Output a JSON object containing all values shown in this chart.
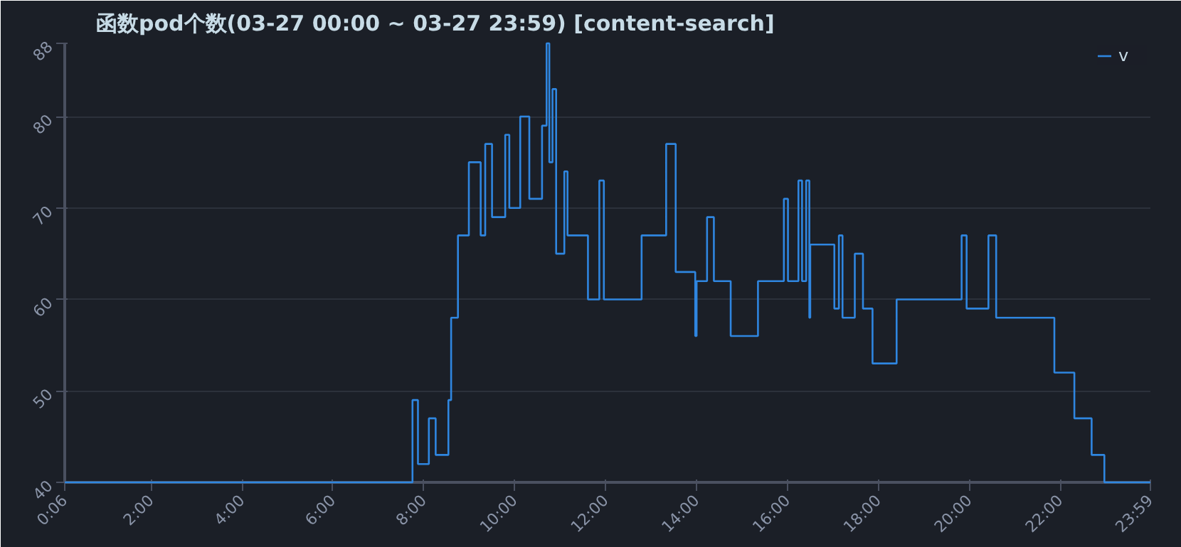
{
  "chart_data": {
    "type": "step",
    "title": "函数pod个数(03-27 00:00 ~ 03-27 23:59) [content-search]",
    "x": [
      0.1,
      7.75,
      7.87,
      8.11,
      8.26,
      8.54,
      8.6,
      8.75,
      8.99,
      9.25,
      9.35,
      9.5,
      9.79,
      9.88,
      10.12,
      10.32,
      10.6,
      10.7,
      10.76,
      10.83,
      10.91,
      11.09,
      11.16,
      11.61,
      11.86,
      11.96,
      12.79,
      13.33,
      13.54,
      13.97,
      14.0,
      14.23,
      14.38,
      14.75,
      15.35,
      15.92,
      16.01,
      16.24,
      16.32,
      16.41,
      16.48,
      16.5,
      17.03,
      17.13,
      17.21,
      17.48,
      17.66,
      17.87,
      18.4,
      19.83,
      19.94,
      20.42,
      20.59,
      21.87,
      22.31,
      22.69,
      22.97,
      23.983
    ],
    "series": [
      {
        "name": "v",
        "color": "#2f86e0",
        "values": [
          40,
          49,
          42,
          47,
          43,
          49,
          58,
          67,
          75,
          67,
          77,
          69,
          78,
          70,
          80,
          71,
          79,
          88,
          75,
          83,
          65,
          74,
          67,
          60,
          73,
          60,
          67,
          77,
          63,
          56,
          62,
          69,
          62,
          56,
          62,
          71,
          62,
          73,
          62,
          73,
          58,
          66,
          59,
          67,
          58,
          65,
          59,
          53,
          60,
          67,
          59,
          67,
          58,
          52,
          47,
          43,
          40,
          40
        ]
      }
    ],
    "xlim": [
      0.1,
      23.983
    ],
    "xticks": [
      {
        "value": 0.1,
        "label": "0:06"
      },
      {
        "value": 2,
        "label": "2:00"
      },
      {
        "value": 4,
        "label": "4:00"
      },
      {
        "value": 6,
        "label": "6:00"
      },
      {
        "value": 8,
        "label": "8:00"
      },
      {
        "value": 10,
        "label": "10:00"
      },
      {
        "value": 12,
        "label": "12:00"
      },
      {
        "value": 14,
        "label": "14:00"
      },
      {
        "value": 16,
        "label": "16:00"
      },
      {
        "value": 18,
        "label": "18:00"
      },
      {
        "value": 20,
        "label": "20:00"
      },
      {
        "value": 22,
        "label": "22:00"
      },
      {
        "value": 23.983,
        "label": "23:59"
      }
    ],
    "ylim": [
      40,
      88
    ],
    "yticks": [
      40,
      50,
      60,
      70,
      80,
      88
    ],
    "grid": "y",
    "legend": "top right",
    "line_style": "solid"
  }
}
